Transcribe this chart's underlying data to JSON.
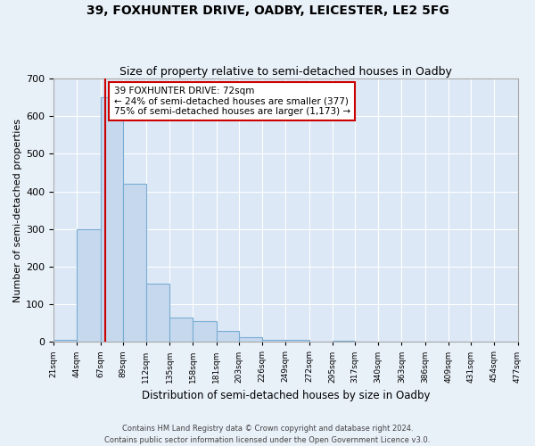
{
  "title": "39, FOXHUNTER DRIVE, OADBY, LEICESTER, LE2 5FG",
  "subtitle": "Size of property relative to semi-detached houses in Oadby",
  "xlabel": "Distribution of semi-detached houses by size in Oadby",
  "ylabel": "Number of semi-detached properties",
  "footer_line1": "Contains HM Land Registry data © Crown copyright and database right 2024.",
  "footer_line2": "Contains public sector information licensed under the Open Government Licence v3.0.",
  "annotation_title": "39 FOXHUNTER DRIVE: 72sqm",
  "annotation_line1": "← 24% of semi-detached houses are smaller (377)",
  "annotation_line2": "75% of semi-detached houses are larger (1,173) →",
  "bar_color": "#c5d8ee",
  "bar_edge_color": "#7aadd4",
  "marker_color": "#cc0000",
  "marker_value": 72,
  "bin_edges": [
    21,
    44,
    67,
    89,
    112,
    135,
    158,
    181,
    203,
    226,
    249,
    272,
    295,
    317,
    340,
    363,
    386,
    409,
    431,
    454,
    477
  ],
  "bin_counts": [
    5,
    300,
    650,
    420,
    155,
    65,
    55,
    30,
    12,
    5,
    5,
    0,
    3,
    0,
    0,
    0,
    0,
    0,
    0,
    0
  ],
  "ylim": [
    0,
    700
  ],
  "yticks": [
    0,
    100,
    200,
    300,
    400,
    500,
    600,
    700
  ],
  "background_color": "#e8f0f8",
  "plot_background": "#dce8f5",
  "title_fontsize": 10,
  "subtitle_fontsize": 9
}
